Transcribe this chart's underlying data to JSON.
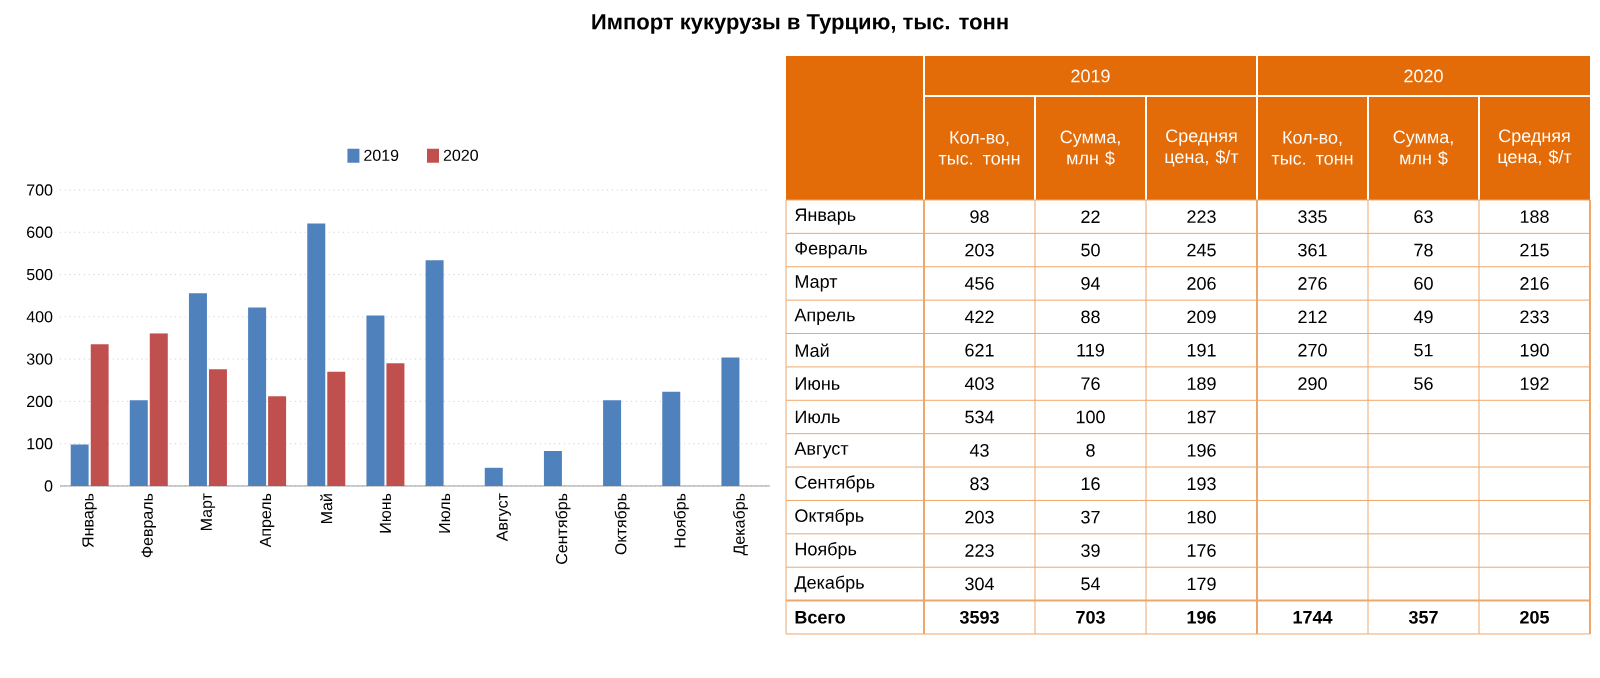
{
  "chart_data": [
    {
      "type": "bar",
      "title": "Импорт кукурузы в Турцию, тыс. тонн",
      "categories": [
        "Январь",
        "Февраль",
        "Март",
        "Апрель",
        "Май",
        "Июнь",
        "Июль",
        "Август",
        "Сентябрь",
        "Октябрь",
        "Ноябрь",
        "Декабрь"
      ],
      "series": [
        {
          "name": "2019",
          "color": "#4f81bd",
          "values": [
            98,
            203,
            456,
            422,
            621,
            403,
            534,
            43,
            83,
            203,
            223,
            304
          ]
        },
        {
          "name": "2020",
          "color": "#c0504d",
          "values": [
            335,
            361,
            276,
            212,
            270,
            290,
            null,
            null,
            null,
            null,
            null,
            null
          ]
        }
      ],
      "ylim": [
        0,
        700
      ],
      "yticks": [
        0,
        100,
        200,
        300,
        400,
        500,
        600,
        700
      ],
      "grid": "y",
      "legend": "top"
    },
    {
      "type": "other",
      "data_labels": true,
      "annotations": [
        "2019",
        "2020"
      ],
      "categories": [
        "Январь",
        "Февраль",
        "Март",
        "Апрель",
        "Май",
        "Июнь",
        "Июль",
        "Август",
        "Сентябрь",
        "Октябрь",
        "Ноябрь",
        "Декабрь",
        "Всего"
      ],
      "series": [
        {
          "name": "Кол-во, тыс. тонн",
          "values": [
            98,
            203,
            456,
            422,
            621,
            403,
            534,
            43,
            83,
            203,
            223,
            304,
            3593
          ]
        },
        {
          "name": "Сумма, млн $",
          "values": [
            22,
            50,
            94,
            88,
            119,
            76,
            100,
            8,
            16,
            37,
            39,
            54,
            703
          ]
        },
        {
          "name": "Средняя цена, $/т",
          "values": [
            223,
            245,
            206,
            209,
            191,
            189,
            187,
            196,
            193,
            180,
            176,
            179,
            196
          ]
        },
        {
          "name": "Кол-во, тыс. тонн",
          "values": [
            335,
            361,
            276,
            212,
            270,
            290,
            null,
            null,
            null,
            null,
            null,
            null,
            1744
          ]
        },
        {
          "name": "Сумма, млн $",
          "values": [
            63,
            78,
            60,
            49,
            51,
            56,
            null,
            null,
            null,
            null,
            null,
            null,
            357
          ]
        },
        {
          "name": "Средняя цена, $/т",
          "values": [
            188,
            215,
            216,
            233,
            190,
            192,
            null,
            null,
            null,
            null,
            null,
            null,
            205
          ]
        }
      ]
    }
  ]
}
